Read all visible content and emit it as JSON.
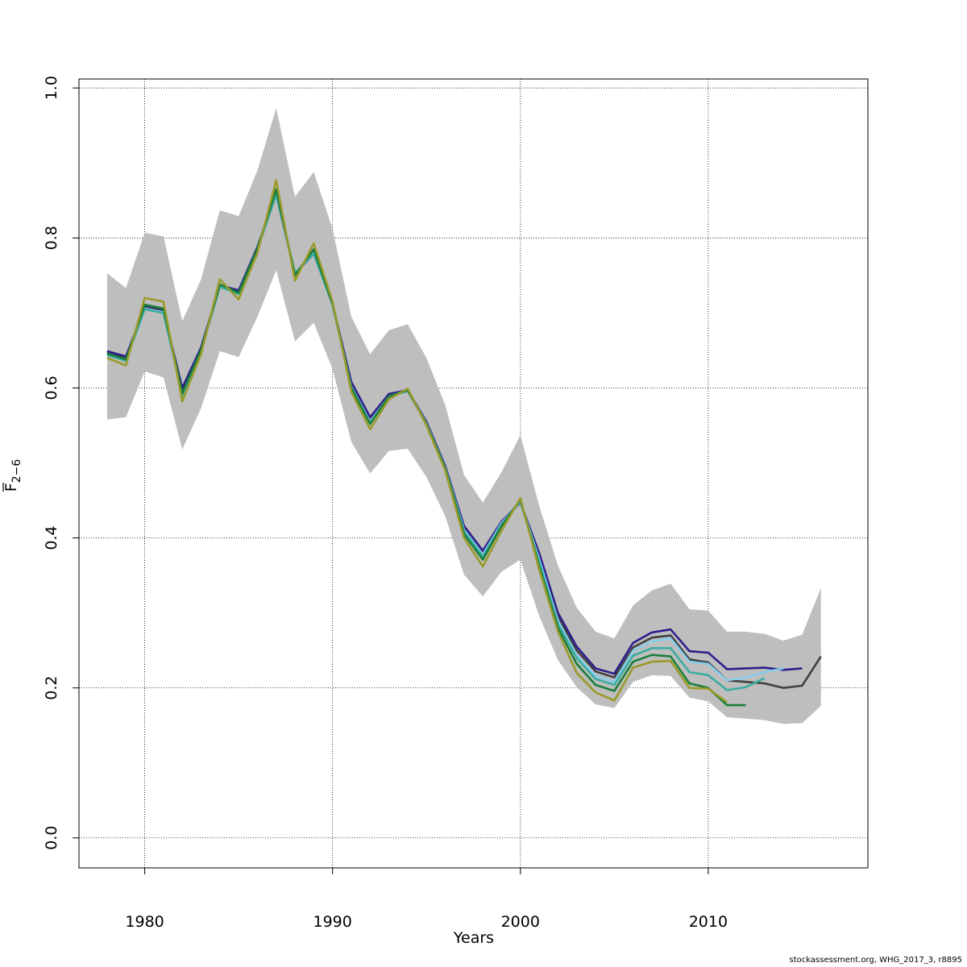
{
  "chart_data": {
    "type": "line",
    "title": "",
    "xlabel": "Years",
    "ylabel_main": "F",
    "ylabel_sub": "2−6",
    "xlim": [
      1976.5,
      2018.5
    ],
    "ylim": [
      -0.04,
      1.012
    ],
    "xticks": [
      1980,
      1990,
      2000,
      2010
    ],
    "xtick_labels": [
      "1980",
      "1990",
      "2000",
      "2010"
    ],
    "yticks": [
      0.0,
      0.2,
      0.4,
      0.6,
      0.8,
      1.0
    ],
    "ytick_labels": [
      "0.0",
      "0.2",
      "0.4",
      "0.6",
      "0.8",
      "1.0"
    ],
    "grid": true,
    "x_start": 1978,
    "confidence_band": {
      "color": "#bebebe",
      "upper": [
        0.753,
        0.733,
        0.807,
        0.802,
        0.689,
        0.745,
        0.837,
        0.829,
        0.89,
        0.973,
        0.855,
        0.888,
        0.812,
        0.695,
        0.645,
        0.677,
        0.685,
        0.64,
        0.577,
        0.484,
        0.447,
        0.488,
        0.537,
        0.443,
        0.363,
        0.307,
        0.275,
        0.266,
        0.31,
        0.33,
        0.339,
        0.305,
        0.303,
        0.275,
        0.275,
        0.272,
        0.263,
        0.271,
        0.333
      ],
      "lower": [
        0.558,
        0.561,
        0.622,
        0.614,
        0.518,
        0.573,
        0.649,
        0.641,
        0.695,
        0.757,
        0.662,
        0.687,
        0.625,
        0.528,
        0.486,
        0.516,
        0.519,
        0.481,
        0.429,
        0.351,
        0.322,
        0.355,
        0.371,
        0.296,
        0.237,
        0.201,
        0.178,
        0.173,
        0.208,
        0.217,
        0.216,
        0.187,
        0.182,
        0.161,
        0.159,
        0.157,
        0.152,
        0.153,
        0.176
      ]
    },
    "series": [
      {
        "color": "#404040",
        "values": [
          0.647,
          0.639,
          0.709,
          0.704,
          0.594,
          0.651,
          0.737,
          0.728,
          0.786,
          0.861,
          0.751,
          0.781,
          0.712,
          0.604,
          0.556,
          0.59,
          0.597,
          0.553,
          0.494,
          0.412,
          0.379,
          0.42,
          0.448,
          0.375,
          0.295,
          0.25,
          0.222,
          0.214,
          0.254,
          0.267,
          0.27,
          0.238,
          0.234,
          0.21,
          0.208,
          0.206,
          0.2,
          0.203,
          0.242
        ]
      },
      {
        "color": "#2d1e8c",
        "values": [
          0.649,
          0.642,
          0.707,
          0.702,
          0.6,
          0.654,
          0.737,
          0.73,
          0.788,
          0.858,
          0.752,
          0.779,
          0.712,
          0.608,
          0.561,
          0.592,
          0.597,
          0.555,
          0.496,
          0.416,
          0.383,
          0.422,
          0.447,
          0.38,
          0.3,
          0.255,
          0.226,
          0.219,
          0.26,
          0.274,
          0.278,
          0.249,
          0.247,
          0.225,
          0.226,
          0.227,
          0.224,
          0.226
        ]
      },
      {
        "color": "#87ceeb",
        "values": [
          0.645,
          0.637,
          0.706,
          0.701,
          0.592,
          0.65,
          0.736,
          0.726,
          0.785,
          0.86,
          0.752,
          0.78,
          0.711,
          0.602,
          0.555,
          0.589,
          0.597,
          0.553,
          0.494,
          0.411,
          0.378,
          0.42,
          0.448,
          0.372,
          0.29,
          0.243,
          0.216,
          0.208,
          0.25,
          0.262,
          0.266,
          0.235,
          0.232,
          0.21,
          0.214,
          0.221,
          0.226
        ]
      },
      {
        "color": "#3aada0",
        "values": [
          0.644,
          0.636,
          0.705,
          0.7,
          0.59,
          0.649,
          0.735,
          0.725,
          0.784,
          0.858,
          0.753,
          0.779,
          0.711,
          0.601,
          0.553,
          0.588,
          0.596,
          0.552,
          0.493,
          0.409,
          0.375,
          0.418,
          0.449,
          0.368,
          0.285,
          0.24,
          0.212,
          0.204,
          0.243,
          0.253,
          0.253,
          0.221,
          0.217,
          0.197,
          0.201,
          0.213
        ]
      },
      {
        "color": "#1a7d3a",
        "values": [
          0.646,
          0.638,
          0.711,
          0.706,
          0.593,
          0.651,
          0.738,
          0.727,
          0.786,
          0.865,
          0.75,
          0.785,
          0.712,
          0.6,
          0.552,
          0.589,
          0.597,
          0.552,
          0.493,
          0.405,
          0.371,
          0.416,
          0.451,
          0.362,
          0.28,
          0.232,
          0.204,
          0.196,
          0.235,
          0.244,
          0.242,
          0.206,
          0.2,
          0.177,
          0.177
        ]
      },
      {
        "color": "#9a9a2a",
        "values": [
          0.64,
          0.63,
          0.72,
          0.715,
          0.582,
          0.645,
          0.745,
          0.718,
          0.78,
          0.877,
          0.743,
          0.793,
          0.715,
          0.595,
          0.545,
          0.585,
          0.599,
          0.55,
          0.49,
          0.4,
          0.362,
          0.41,
          0.453,
          0.358,
          0.275,
          0.22,
          0.194,
          0.183,
          0.227,
          0.235,
          0.236,
          0.2,
          0.199,
          0.181
        ]
      }
    ]
  },
  "footer": "stockassessment.org, WHG_2017_3, r8895"
}
